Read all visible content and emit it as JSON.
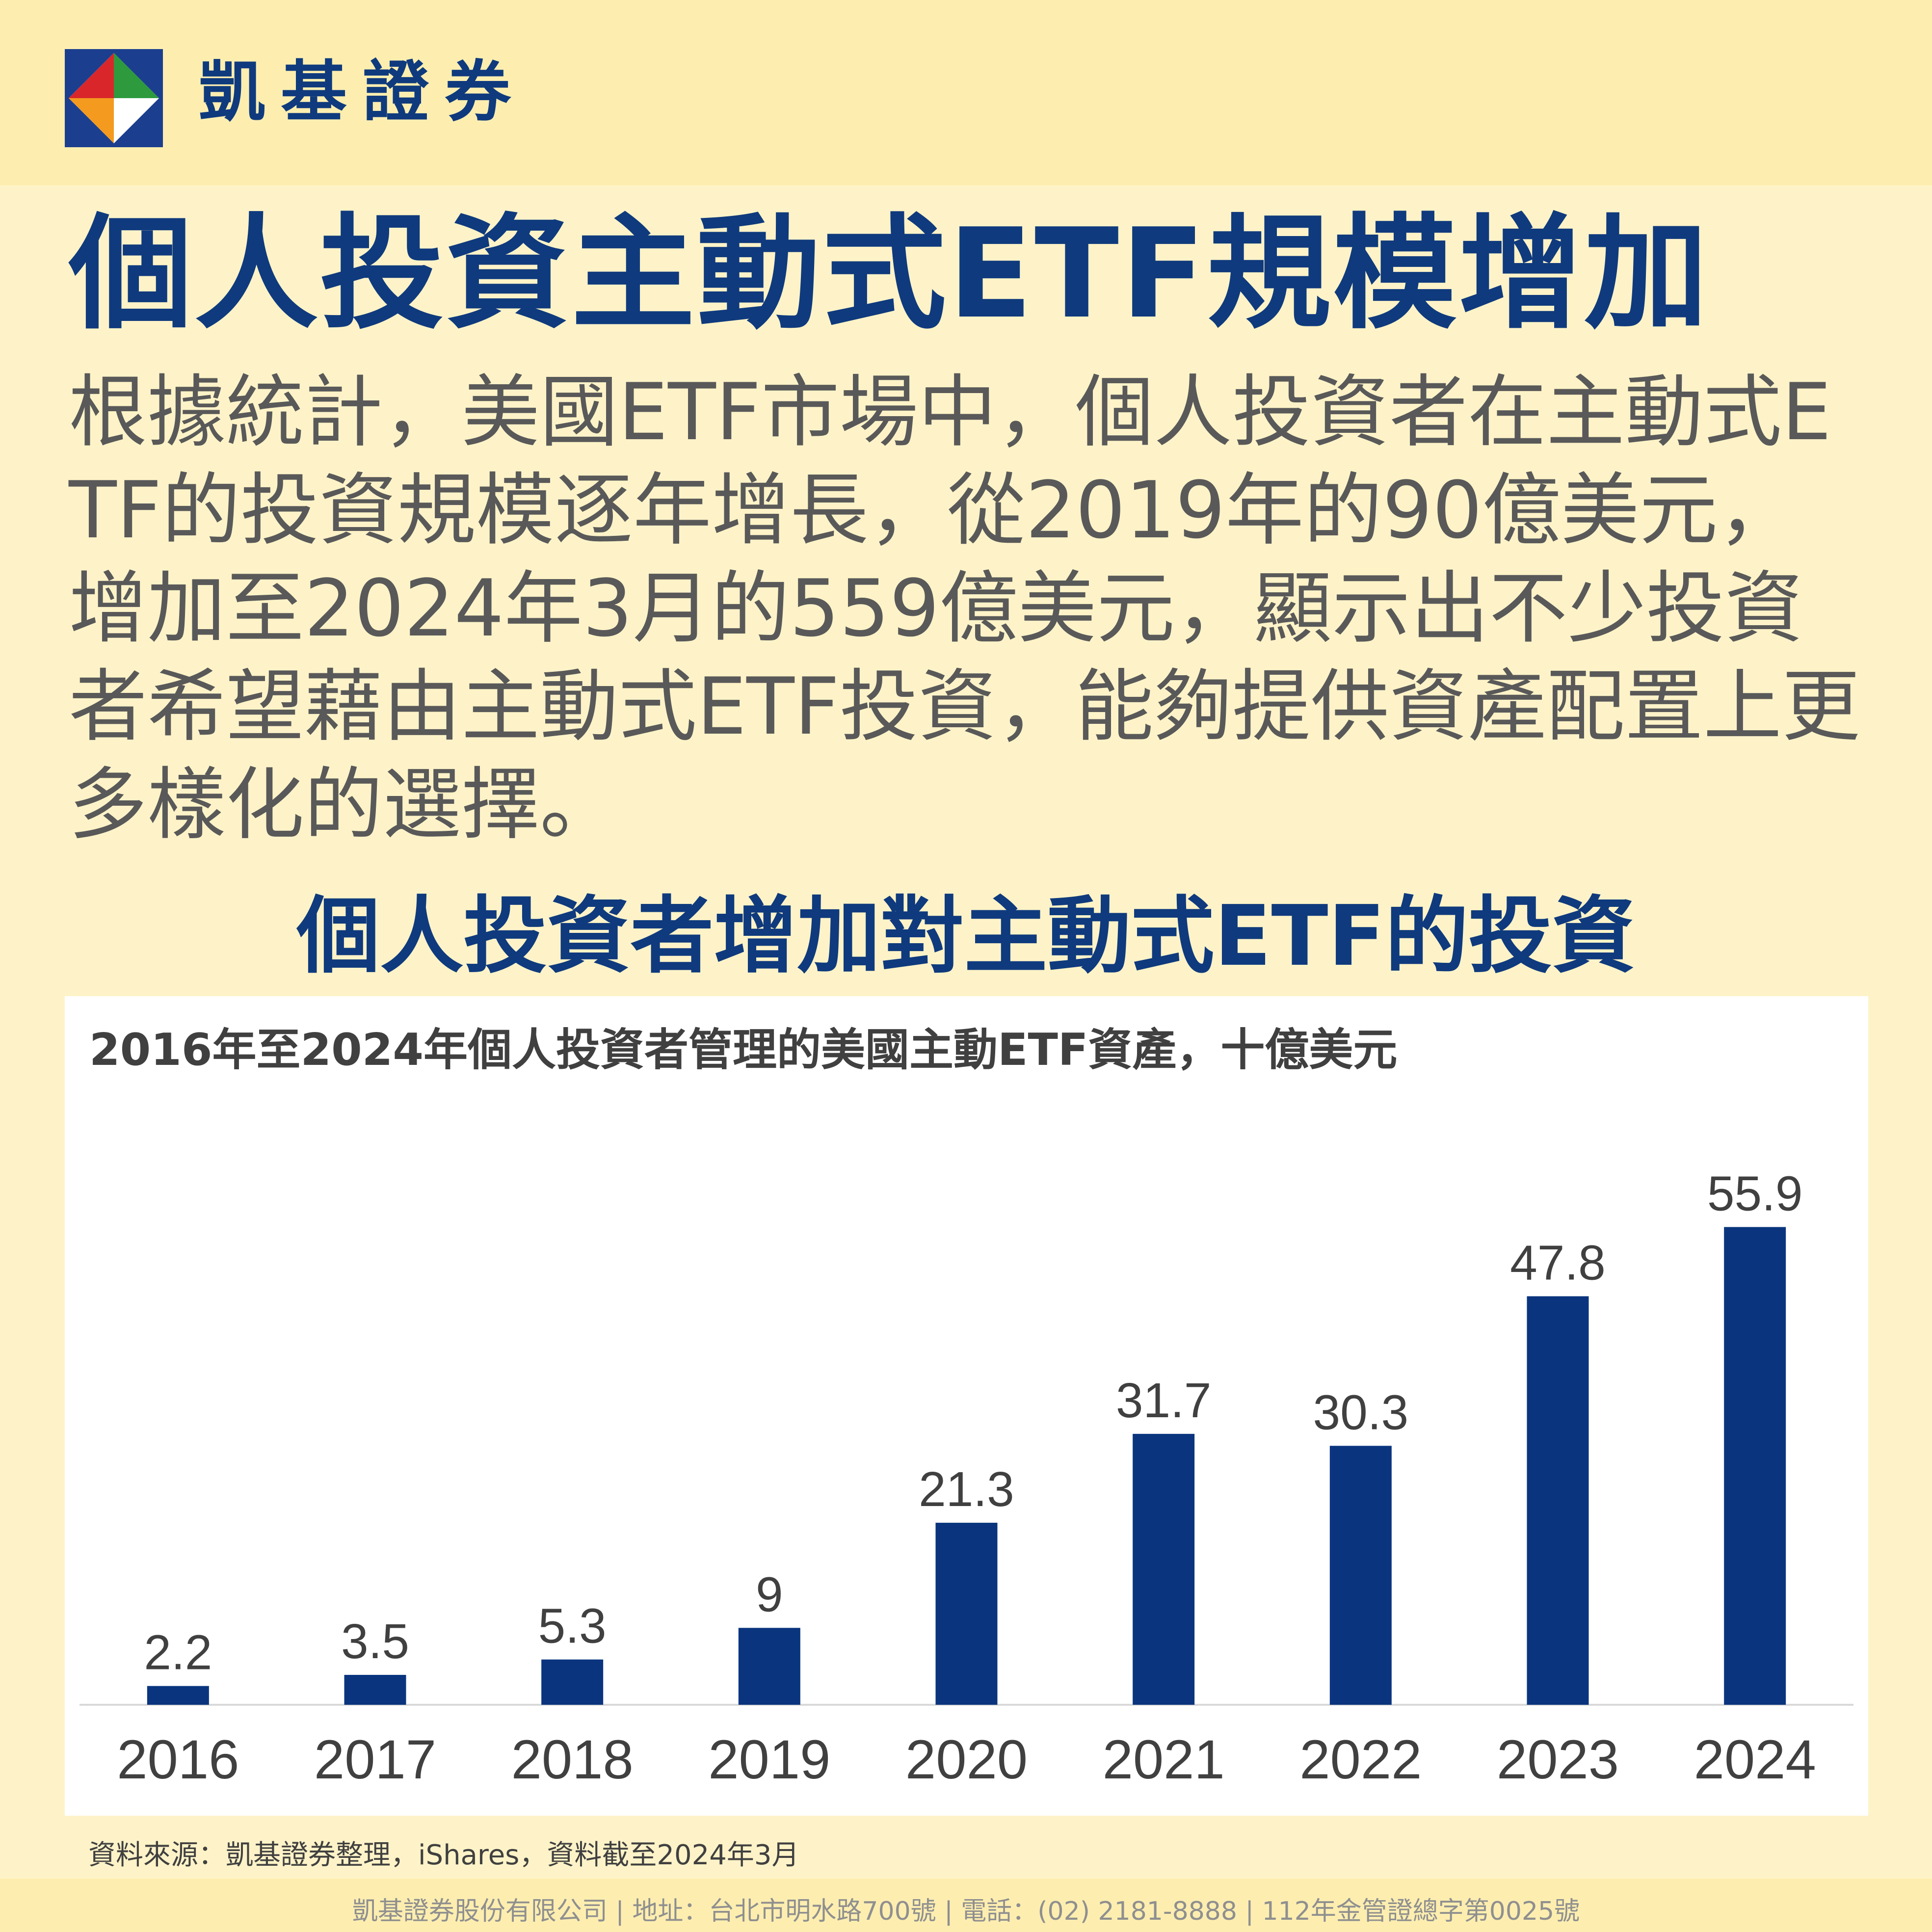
{
  "brand": {
    "name": "凱基證券"
  },
  "headline": "個人投資主動式ETF規模增加",
  "intro": "根據統計，美國ETF市場中，個人投資者在主動式ETF的投資規模逐年增長，從2019年的90億美元，增加至2024年3月的559億美元，顯示出不少投資者希望藉由主動式ETF投資，能夠提供資產配置上更多樣化的選擇。",
  "subhead": "個人投資者增加對主動式ETF的投資",
  "colors": {
    "accent": "#0f3a7d",
    "bar": "#0a357e",
    "background": "#fef3c8",
    "band": "#fdeeb0"
  },
  "chart_data": {
    "type": "bar",
    "title": "2016年至2024年個人投資者管理的美國主動ETF資產，十億美元",
    "categories": [
      "2016",
      "2017",
      "2018",
      "2019",
      "2020",
      "2021",
      "2022",
      "2023",
      "2024"
    ],
    "values": [
      2.2,
      3.5,
      5.3,
      9,
      21.3,
      31.7,
      30.3,
      47.8,
      55.9
    ],
    "value_labels": [
      "2.2",
      "3.5",
      "5.3",
      "9",
      "21.3",
      "31.7",
      "30.3",
      "47.8",
      "55.9"
    ],
    "xlabel": "",
    "ylabel": "",
    "ylim": [
      0,
      60
    ],
    "grid": false,
    "legend": "none"
  },
  "source": "資料來源：凱基證券整理，iShares，資料截至2024年3月",
  "footer": "凱基證券股份有限公司 | 地址：台北市明水路700號 | 電話：(02) 2181-8888 | 112年金管證總字第0025號"
}
